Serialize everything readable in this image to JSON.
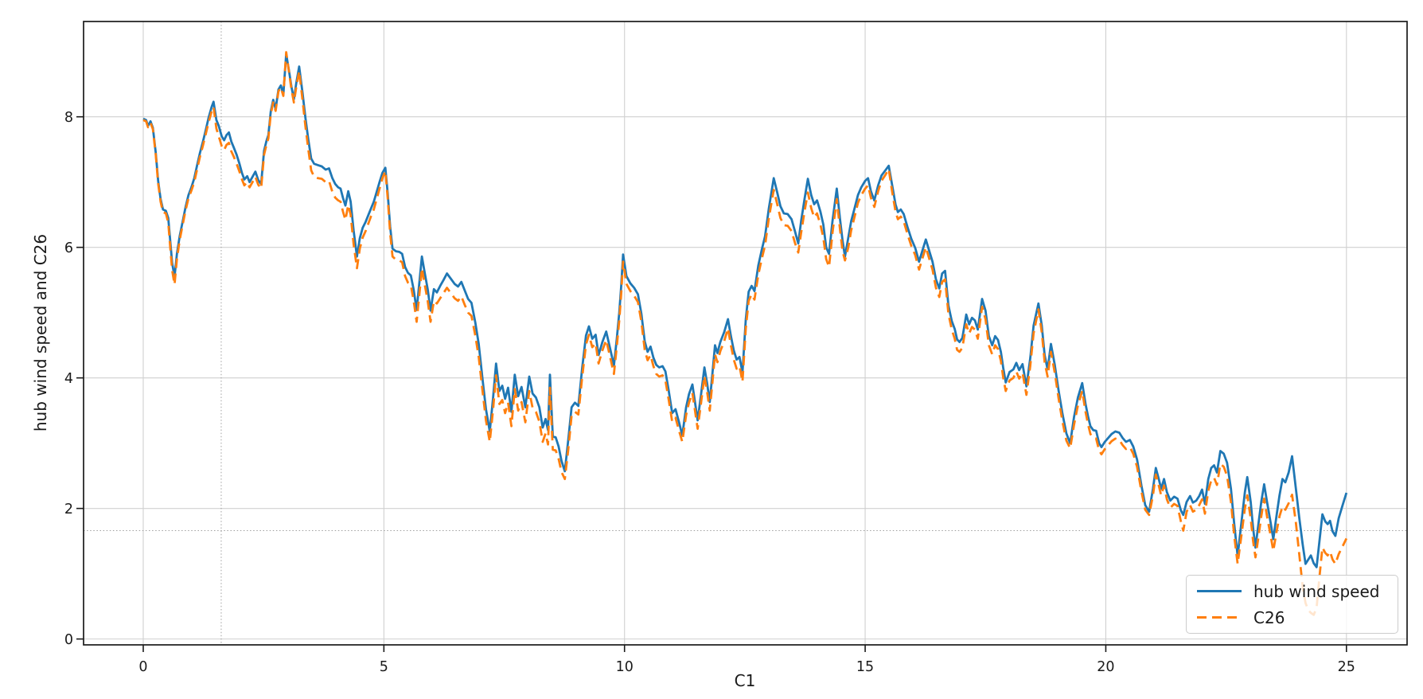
{
  "chart_data": {
    "type": "line",
    "title": "",
    "xlabel": "C1",
    "ylabel": "hub wind speed and C26",
    "xlim": [
      -1.24,
      26.26
    ],
    "ylim": [
      -0.09,
      9.46
    ],
    "xticks": [
      0,
      5,
      10,
      15,
      20,
      25
    ],
    "yticks": [
      0,
      2,
      4,
      6,
      8
    ],
    "grid": true,
    "grid_color": "#d0d0d0",
    "crosshair": {
      "x": 1.62,
      "y": 1.66,
      "color": "#9f9f9f",
      "style": "dotted"
    },
    "legend": {
      "position": "lower right",
      "entries": [
        "hub wind speed",
        "C26"
      ]
    },
    "x": [
      0.0,
      0.06,
      0.1,
      0.15,
      0.2,
      0.26,
      0.31,
      0.36,
      0.41,
      0.47,
      0.52,
      0.56,
      0.6,
      0.65,
      0.7,
      0.76,
      0.82,
      0.88,
      0.94,
      1.0,
      1.06,
      1.12,
      1.18,
      1.24,
      1.3,
      1.36,
      1.42,
      1.46,
      1.52,
      1.57,
      1.63,
      1.68,
      1.73,
      1.78,
      1.83,
      1.88,
      1.94,
      2.0,
      2.05,
      2.1,
      2.16,
      2.21,
      2.27,
      2.33,
      2.39,
      2.45,
      2.51,
      2.56,
      2.6,
      2.65,
      2.7,
      2.75,
      2.81,
      2.86,
      2.91,
      2.97,
      3.03,
      3.08,
      3.13,
      3.18,
      3.24,
      3.31,
      3.37,
      3.43,
      3.49,
      3.55,
      3.63,
      3.71,
      3.79,
      3.86,
      3.93,
      3.99,
      4.05,
      4.1,
      4.15,
      4.2,
      4.26,
      4.31,
      4.37,
      4.44,
      4.5,
      4.56,
      4.62,
      4.68,
      4.73,
      4.79,
      4.85,
      4.91,
      4.97,
      5.03,
      5.08,
      5.13,
      5.18,
      5.25,
      5.32,
      5.38,
      5.44,
      5.5,
      5.56,
      5.62,
      5.68,
      5.74,
      5.79,
      5.85,
      5.91,
      5.97,
      6.04,
      6.1,
      6.17,
      6.24,
      6.31,
      6.39,
      6.47,
      6.54,
      6.61,
      6.68,
      6.75,
      6.82,
      6.9,
      6.97,
      7.05,
      7.12,
      7.2,
      7.27,
      7.33,
      7.4,
      7.46,
      7.52,
      7.58,
      7.65,
      7.72,
      7.79,
      7.86,
      7.94,
      8.02,
      8.09,
      8.16,
      8.23,
      8.3,
      8.36,
      8.41,
      8.45,
      8.51,
      8.57,
      8.63,
      8.69,
      8.76,
      8.83,
      8.9,
      8.97,
      9.04,
      9.12,
      9.2,
      9.26,
      9.33,
      9.4,
      9.46,
      9.54,
      9.62,
      9.7,
      9.78,
      9.84,
      9.89,
      9.93,
      9.97,
      10.04,
      10.12,
      10.2,
      10.28,
      10.35,
      10.42,
      10.48,
      10.54,
      10.6,
      10.66,
      10.72,
      10.79,
      10.85,
      10.92,
      10.99,
      11.06,
      11.13,
      11.2,
      11.28,
      11.34,
      11.41,
      11.47,
      11.52,
      11.59,
      11.66,
      11.72,
      11.77,
      11.83,
      11.88,
      11.93,
      11.99,
      12.07,
      12.15,
      12.21,
      12.27,
      12.33,
      12.39,
      12.45,
      12.52,
      12.58,
      12.64,
      12.7,
      12.78,
      12.85,
      12.92,
      13.0,
      13.1,
      13.17,
      13.24,
      13.31,
      13.39,
      13.47,
      13.54,
      13.61,
      13.67,
      13.74,
      13.81,
      13.88,
      13.94,
      14.0,
      14.07,
      14.13,
      14.19,
      14.25,
      14.32,
      14.41,
      14.48,
      14.53,
      14.58,
      14.65,
      14.71,
      14.78,
      14.85,
      14.92,
      15.0,
      15.06,
      15.12,
      15.19,
      15.27,
      15.34,
      15.42,
      15.49,
      15.56,
      15.63,
      15.68,
      15.74,
      15.8,
      15.88,
      15.96,
      16.04,
      16.12,
      16.19,
      16.26,
      16.33,
      16.4,
      16.47,
      16.54,
      16.6,
      16.66,
      16.73,
      16.8,
      16.86,
      16.91,
      16.96,
      17.02,
      17.1,
      17.16,
      17.22,
      17.28,
      17.34,
      17.43,
      17.5,
      17.57,
      17.64,
      17.7,
      17.76,
      17.82,
      17.87,
      17.92,
      18.0,
      18.08,
      18.14,
      18.2,
      18.27,
      18.35,
      18.43,
      18.5,
      18.6,
      18.67,
      18.73,
      18.79,
      18.86,
      18.94,
      19.02,
      19.1,
      19.18,
      19.26,
      19.34,
      19.42,
      19.51,
      19.58,
      19.63,
      19.68,
      19.74,
      19.8,
      19.86,
      19.91,
      19.98,
      20.05,
      20.12,
      20.2,
      20.28,
      20.35,
      20.42,
      20.5,
      20.57,
      20.65,
      20.74,
      20.82,
      20.9,
      20.98,
      21.04,
      21.1,
      21.15,
      21.21,
      21.27,
      21.34,
      21.42,
      21.49,
      21.56,
      21.61,
      21.68,
      21.75,
      21.81,
      21.88,
      21.94,
      22.0,
      22.06,
      22.13,
      22.19,
      22.25,
      22.31,
      22.38,
      22.45,
      22.52,
      22.6,
      22.67,
      22.74,
      22.82,
      22.89,
      22.94,
      23.01,
      23.06,
      23.11,
      23.17,
      23.23,
      23.29,
      23.35,
      23.42,
      23.48,
      23.55,
      23.61,
      23.67,
      23.73,
      23.8,
      23.87,
      23.95,
      24.02,
      24.09,
      24.15,
      24.21,
      24.26,
      24.32,
      24.38,
      24.44,
      24.5,
      24.56,
      24.61,
      24.66,
      24.71,
      24.77,
      24.84,
      24.92,
      25.0
    ],
    "series": [
      {
        "name": "hub wind speed",
        "color": "#1f77b4",
        "style": "solid",
        "values": [
          7.97,
          7.95,
          7.86,
          7.93,
          7.83,
          7.45,
          7.02,
          6.74,
          6.58,
          6.56,
          6.45,
          6.1,
          5.76,
          5.55,
          5.9,
          6.18,
          6.4,
          6.62,
          6.8,
          6.92,
          7.06,
          7.26,
          7.45,
          7.62,
          7.8,
          7.99,
          8.15,
          8.23,
          7.95,
          7.86,
          7.7,
          7.64,
          7.72,
          7.76,
          7.62,
          7.53,
          7.42,
          7.28,
          7.14,
          7.04,
          7.09,
          7.0,
          7.08,
          7.16,
          7.03,
          6.97,
          7.48,
          7.63,
          7.72,
          8.08,
          8.26,
          8.12,
          8.42,
          8.48,
          8.34,
          8.96,
          8.7,
          8.46,
          8.27,
          8.52,
          8.77,
          8.36,
          7.98,
          7.65,
          7.36,
          7.28,
          7.26,
          7.24,
          7.19,
          7.21,
          7.06,
          6.97,
          6.92,
          6.9,
          6.76,
          6.64,
          6.86,
          6.7,
          6.26,
          5.86,
          6.14,
          6.3,
          6.39,
          6.5,
          6.59,
          6.7,
          6.85,
          7.0,
          7.14,
          7.22,
          6.82,
          6.32,
          5.98,
          5.94,
          5.93,
          5.9,
          5.7,
          5.61,
          5.57,
          5.35,
          5.04,
          5.48,
          5.86,
          5.6,
          5.36,
          5.03,
          5.36,
          5.31,
          5.41,
          5.5,
          5.6,
          5.52,
          5.44,
          5.4,
          5.47,
          5.34,
          5.21,
          5.15,
          4.85,
          4.52,
          3.98,
          3.52,
          3.18,
          3.7,
          4.22,
          3.8,
          3.88,
          3.68,
          3.85,
          3.48,
          4.05,
          3.72,
          3.86,
          3.55,
          4.02,
          3.76,
          3.7,
          3.55,
          3.24,
          3.37,
          3.2,
          4.05,
          3.1,
          3.09,
          2.95,
          2.73,
          2.57,
          3.05,
          3.55,
          3.62,
          3.57,
          4.15,
          4.65,
          4.79,
          4.6,
          4.66,
          4.35,
          4.55,
          4.71,
          4.45,
          4.19,
          4.6,
          5.0,
          5.4,
          5.89,
          5.56,
          5.45,
          5.38,
          5.28,
          4.98,
          4.56,
          4.4,
          4.48,
          4.31,
          4.2,
          4.16,
          4.18,
          4.1,
          3.8,
          3.46,
          3.52,
          3.33,
          3.12,
          3.55,
          3.75,
          3.9,
          3.6,
          3.35,
          3.75,
          4.16,
          3.9,
          3.63,
          4.1,
          4.5,
          4.38,
          4.55,
          4.7,
          4.9,
          4.64,
          4.42,
          4.28,
          4.32,
          4.08,
          4.9,
          5.32,
          5.41,
          5.33,
          5.72,
          5.96,
          6.17,
          6.6,
          7.06,
          6.85,
          6.63,
          6.52,
          6.51,
          6.43,
          6.25,
          6.06,
          6.4,
          6.74,
          7.05,
          6.8,
          6.66,
          6.72,
          6.55,
          6.35,
          6.0,
          5.9,
          6.4,
          6.9,
          6.42,
          6.1,
          5.86,
          6.15,
          6.4,
          6.6,
          6.8,
          6.92,
          7.02,
          7.06,
          6.86,
          6.72,
          6.95,
          7.1,
          7.18,
          7.25,
          6.96,
          6.66,
          6.54,
          6.58,
          6.51,
          6.31,
          6.13,
          5.99,
          5.78,
          5.95,
          6.12,
          5.95,
          5.78,
          5.51,
          5.37,
          5.6,
          5.64,
          5.11,
          4.87,
          4.75,
          4.59,
          4.55,
          4.61,
          4.97,
          4.82,
          4.92,
          4.88,
          4.74,
          5.21,
          5.03,
          4.64,
          4.5,
          4.64,
          4.58,
          4.4,
          4.15,
          3.93,
          4.09,
          4.13,
          4.23,
          4.12,
          4.21,
          3.87,
          4.3,
          4.8,
          5.14,
          4.8,
          4.35,
          4.13,
          4.52,
          4.2,
          3.8,
          3.45,
          3.15,
          3.0,
          3.4,
          3.7,
          3.92,
          3.6,
          3.41,
          3.26,
          3.2,
          3.19,
          3.0,
          2.94,
          3.02,
          3.08,
          3.14,
          3.18,
          3.16,
          3.08,
          3.02,
          3.05,
          2.95,
          2.75,
          2.35,
          2.05,
          1.95,
          2.3,
          2.62,
          2.45,
          2.3,
          2.45,
          2.25,
          2.12,
          2.18,
          2.15,
          1.97,
          1.9,
          2.1,
          2.19,
          2.09,
          2.12,
          2.19,
          2.29,
          2.07,
          2.45,
          2.62,
          2.66,
          2.55,
          2.88,
          2.84,
          2.7,
          2.3,
          1.75,
          1.27,
          1.8,
          2.25,
          2.48,
          2.1,
          1.7,
          1.4,
          1.75,
          2.1,
          2.37,
          2.1,
          1.8,
          1.53,
          1.9,
          2.2,
          2.45,
          2.4,
          2.55,
          2.8,
          2.3,
          1.86,
          1.45,
          1.15,
          1.22,
          1.28,
          1.16,
          1.1,
          1.5,
          1.91,
          1.8,
          1.76,
          1.81,
          1.65,
          1.58,
          1.85,
          2.05,
          2.24
        ]
      },
      {
        "name": "C26",
        "color": "#ff7f0e",
        "style": "dashed",
        "values": [
          7.95,
          7.93,
          7.84,
          7.91,
          7.81,
          7.42,
          6.98,
          6.7,
          6.54,
          6.52,
          6.38,
          6.0,
          5.65,
          5.43,
          5.82,
          6.12,
          6.35,
          6.57,
          6.75,
          6.87,
          7.0,
          7.2,
          7.39,
          7.56,
          7.74,
          7.92,
          8.08,
          8.15,
          7.82,
          7.7,
          7.55,
          7.49,
          7.57,
          7.6,
          7.47,
          7.39,
          7.28,
          7.16,
          7.04,
          6.95,
          7.0,
          6.92,
          7.0,
          7.08,
          6.96,
          6.9,
          7.42,
          7.57,
          7.67,
          8.04,
          8.22,
          8.09,
          8.39,
          8.45,
          8.32,
          8.99,
          8.68,
          8.42,
          8.22,
          8.46,
          8.7,
          8.25,
          7.85,
          7.5,
          7.18,
          7.08,
          7.06,
          7.05,
          7.0,
          7.02,
          6.85,
          6.76,
          6.72,
          6.7,
          6.55,
          6.42,
          6.65,
          6.5,
          6.05,
          5.68,
          5.98,
          6.15,
          6.25,
          6.37,
          6.47,
          6.58,
          6.74,
          6.9,
          7.06,
          7.17,
          6.75,
          6.22,
          5.86,
          5.81,
          5.8,
          5.77,
          5.56,
          5.46,
          5.42,
          5.18,
          4.86,
          5.3,
          5.68,
          5.42,
          5.18,
          4.86,
          5.18,
          5.14,
          5.22,
          5.3,
          5.38,
          5.3,
          5.22,
          5.18,
          5.25,
          5.12,
          5.0,
          4.95,
          4.65,
          4.32,
          3.8,
          3.35,
          3.02,
          3.52,
          4.04,
          3.6,
          3.66,
          3.46,
          3.62,
          3.26,
          3.83,
          3.5,
          3.63,
          3.32,
          3.8,
          3.54,
          3.48,
          3.33,
          3.02,
          3.15,
          2.98,
          3.85,
          2.9,
          2.89,
          2.76,
          2.56,
          2.45,
          2.9,
          3.42,
          3.48,
          3.44,
          4.01,
          4.51,
          4.66,
          4.47,
          4.53,
          4.22,
          4.42,
          4.58,
          4.32,
          4.06,
          4.48,
          4.88,
          5.28,
          5.78,
          5.44,
          5.33,
          5.26,
          5.16,
          4.86,
          4.43,
          4.27,
          4.35,
          4.18,
          4.06,
          4.02,
          4.04,
          3.96,
          3.66,
          3.33,
          3.39,
          3.2,
          3.02,
          3.43,
          3.62,
          3.77,
          3.47,
          3.22,
          3.62,
          4.03,
          3.77,
          3.5,
          3.96,
          4.36,
          4.24,
          4.41,
          4.56,
          4.76,
          4.5,
          4.28,
          4.14,
          4.18,
          3.94,
          4.76,
          5.18,
          5.28,
          5.2,
          5.58,
          5.82,
          6.03,
          6.45,
          6.88,
          6.67,
          6.45,
          6.34,
          6.33,
          6.25,
          6.07,
          5.92,
          6.22,
          6.55,
          6.84,
          6.6,
          6.46,
          6.52,
          6.35,
          6.15,
          5.82,
          5.7,
          6.22,
          6.74,
          6.26,
          5.94,
          5.8,
          6.0,
          6.26,
          6.47,
          6.68,
          6.8,
          6.9,
          6.95,
          6.76,
          6.62,
          6.86,
          7.02,
          7.11,
          7.2,
          6.86,
          6.55,
          6.43,
          6.47,
          6.4,
          6.2,
          6.02,
          5.88,
          5.66,
          5.83,
          6.0,
          5.83,
          5.66,
          5.38,
          5.24,
          5.47,
          5.51,
          4.98,
          4.74,
          4.6,
          4.43,
          4.4,
          4.46,
          4.82,
          4.68,
          4.78,
          4.74,
          4.6,
          5.09,
          4.9,
          4.5,
          4.36,
          4.5,
          4.44,
          4.26,
          4.0,
          3.8,
          3.96,
          4.0,
          4.1,
          3.99,
          4.08,
          3.74,
          4.18,
          4.68,
          5.05,
          4.7,
          4.24,
          4.02,
          4.4,
          4.08,
          3.68,
          3.33,
          3.04,
          2.92,
          3.28,
          3.58,
          3.8,
          3.48,
          3.29,
          3.14,
          3.08,
          3.07,
          2.89,
          2.83,
          2.91,
          2.97,
          3.03,
          3.07,
          3.05,
          2.97,
          2.91,
          2.94,
          2.84,
          2.64,
          2.26,
          1.98,
          1.9,
          2.2,
          2.52,
          2.35,
          2.2,
          2.35,
          2.14,
          2.01,
          2.07,
          2.04,
          1.8,
          1.66,
          1.95,
          2.05,
          1.95,
          1.98,
          2.05,
          2.14,
          1.92,
          2.27,
          2.43,
          2.47,
          2.36,
          2.68,
          2.64,
          2.5,
          2.1,
          1.57,
          1.15,
          1.6,
          2.0,
          2.2,
          1.85,
          1.5,
          1.25,
          1.55,
          1.88,
          2.15,
          1.88,
          1.6,
          1.35,
          1.65,
          1.88,
          2.03,
          1.98,
          2.08,
          2.21,
          1.78,
          1.3,
          0.8,
          0.55,
          0.44,
          0.4,
          0.37,
          0.48,
          0.95,
          1.4,
          1.32,
          1.28,
          1.34,
          1.22,
          1.15,
          1.3,
          1.42,
          1.54
        ]
      }
    ]
  }
}
